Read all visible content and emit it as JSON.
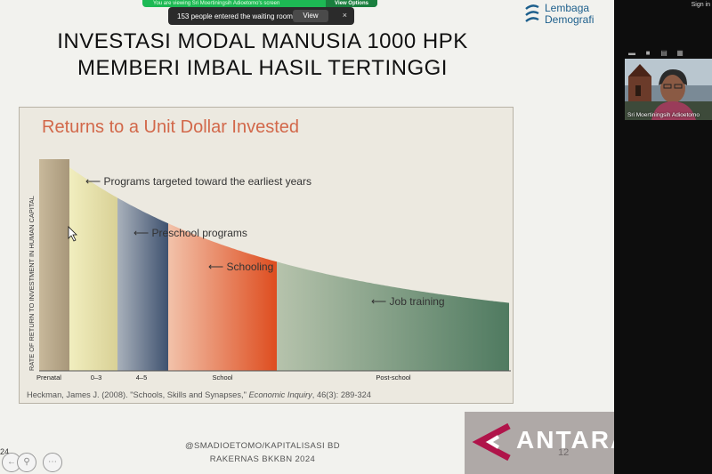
{
  "zoom": {
    "banner_text": "You are viewing Sri Moertiningsih Adioetomo's screen",
    "view_options_label": "View Options",
    "waiting_text": "153 people entered the waiting room",
    "view_button": "View",
    "close_glyph": "×",
    "sign_in": "Sign in",
    "participant_name": "Sri Moertiningsih Adioetomo"
  },
  "slide": {
    "logo_line1": "Lembaga",
    "logo_line2": "Demografi",
    "title_line1": "INVESTASI MODAL MANUSIA 1000 HPK",
    "title_line2": "MEMBERI IMBAL HASIL TERTINGGI",
    "footer_line1": "@SMADIOETOMO/KAPITALISASI BD",
    "footer_line2": "RAKERNAS BKKBN 2024",
    "page_number": "12",
    "left_number": "24"
  },
  "chart_data": {
    "type": "area",
    "title": "Returns to a Unit Dollar Invested",
    "ylabel": "RATE OF RETURN TO INVESTMENT IN HUMAN CAPITAL",
    "categories": [
      "Prenatal",
      "0–3",
      "4–5",
      "School",
      "Post-school"
    ],
    "annotations": [
      "Programs targeted toward the earliest years",
      "Preschool programs",
      "Schooling",
      "Job training"
    ],
    "citation_prefix": "Heckman, James J. (2008). \"Schools, Skills and Synapses,\"",
    "citation_journal": "Economic Inquiry",
    "citation_suffix": ", 46(3): 289-324",
    "colors": {
      "prenatal": "#b9a98c",
      "age_0_3": "#e6e1a6",
      "age_4_5": "#4f627c",
      "school": "#e4572a",
      "post_school": "#5b8066",
      "title": "#d2684a"
    }
  },
  "watermark": {
    "text": "ANTARA"
  }
}
